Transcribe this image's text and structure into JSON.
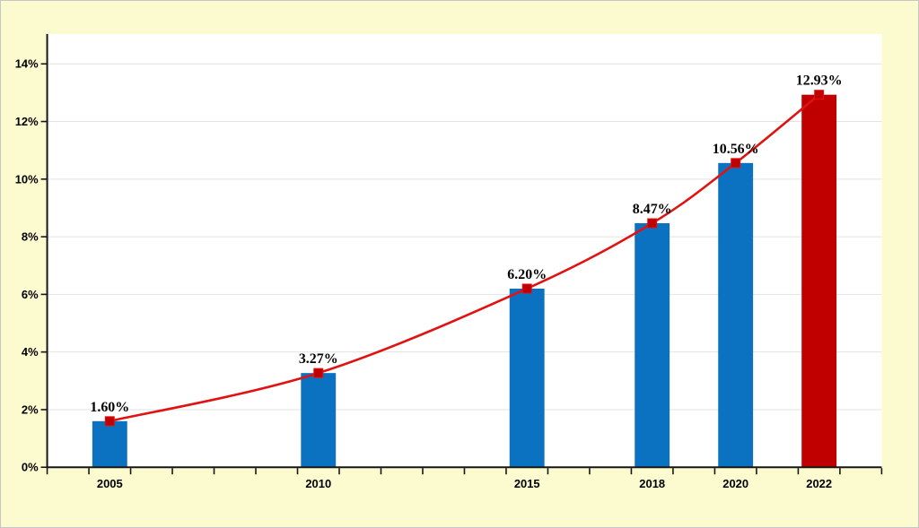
{
  "canvas": {
    "background": "#FCFACF",
    "border_color": "#C6C6C6",
    "plot_background": "#FFFFFF"
  },
  "colors": {
    "bar_blue": "#0B72C2",
    "bar_red": "#C00000",
    "line_red": "#E01212",
    "marker_red": "#C00000",
    "grid": "#E2E2E2",
    "axis": "#161616",
    "text": "#000000"
  },
  "chart_data": {
    "type": "bar",
    "title": "",
    "xlabel": "",
    "ylabel": "",
    "categories": [
      "2005",
      "2010",
      "2015",
      "2018",
      "2020",
      "2022"
    ],
    "x_years": [
      2005,
      2010,
      2015,
      2018,
      2020,
      2022
    ],
    "values": [
      1.6,
      3.27,
      6.2,
      8.47,
      10.56,
      12.93
    ],
    "data_labels": [
      "1.60%",
      "3.27%",
      "6.20%",
      "8.47%",
      "10.56%",
      "12.93%"
    ],
    "series": [
      {
        "name": "bars",
        "type": "bar",
        "values": [
          1.6,
          3.27,
          6.2,
          8.47,
          10.56,
          12.93
        ],
        "bar_colors": [
          "#0B72C2",
          "#0B72C2",
          "#0B72C2",
          "#0B72C2",
          "#0B72C2",
          "#C00000"
        ]
      },
      {
        "name": "trend",
        "type": "line",
        "values": [
          1.6,
          3.27,
          6.2,
          8.47,
          10.56,
          12.93
        ],
        "color": "#E01212",
        "marker": "square",
        "marker_color": "#C00000",
        "smooth": true
      }
    ],
    "ylim": [
      0,
      14
    ],
    "y_tick_step": 2,
    "y_tick_labels": [
      "0%",
      "2%",
      "4%",
      "6%",
      "8%",
      "10%",
      "12%",
      "14%"
    ],
    "x_axis_range": [
      2003.5,
      2023.5
    ],
    "x_minor_tick_every_years": 1,
    "grid": "horizontal",
    "legend": "none"
  }
}
